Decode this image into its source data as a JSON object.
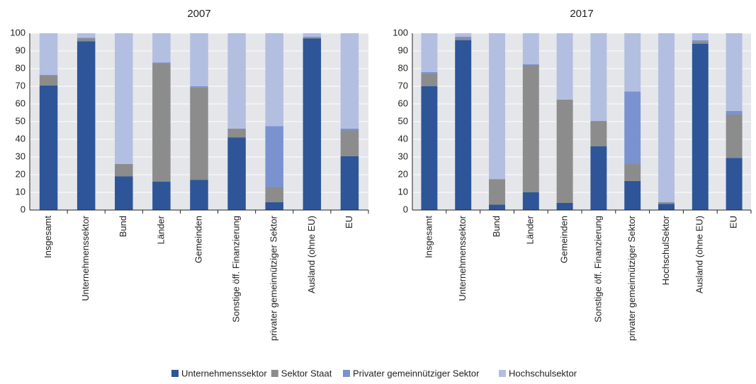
{
  "chart_data": [
    {
      "type": "bar",
      "stacked": true,
      "title": "2007",
      "categories": [
        "Insgesamt",
        "Unternehmenssektor",
        "Bund",
        "Länder",
        "Gemeinden",
        "Sonstige öff. Finanzierung",
        "privater gemeinnütziger Sektor",
        "Ausland (ohne EU)",
        "EU"
      ],
      "series": [
        {
          "name": "Unternehmenssektor",
          "color": "#2e5597",
          "values": [
            70.5,
            95.5,
            19,
            16,
            17,
            41,
            4.5,
            97,
            30.5
          ]
        },
        {
          "name": "Sektor Staat",
          "color": "#8c8c8c",
          "values": [
            5.5,
            1.5,
            7,
            67,
            52.5,
            5,
            8.5,
            0.5,
            14.5
          ]
        },
        {
          "name": "Privater gemeinnütziger Sektor",
          "color": "#7a93d0",
          "values": [
            0.5,
            0.5,
            0,
            0.5,
            0.5,
            0,
            34.5,
            0.5,
            1
          ]
        },
        {
          "name": "Hochschulsektor",
          "color": "#b3bfe0",
          "values": [
            23.5,
            2.5,
            74,
            16.5,
            30,
            54,
            52.5,
            2,
            54
          ]
        }
      ],
      "ylim": [
        0,
        100
      ],
      "yticks": [
        0,
        10,
        20,
        30,
        40,
        50,
        60,
        70,
        80,
        90,
        100
      ],
      "grid": true
    },
    {
      "type": "bar",
      "stacked": true,
      "title": "2017",
      "categories": [
        "Insgesamt",
        "Unternehmenssektor",
        "Bund",
        "Länder",
        "Gemeinden",
        "Sonstige öff. Finanzierung",
        "privater gemeinnütziger Sektor",
        "HochschulSektor",
        "Ausland (ohne EU)",
        "EU"
      ],
      "series": [
        {
          "name": "Unternehmenssektor",
          "color": "#2e5597",
          "values": [
            70,
            96,
            3,
            10,
            4,
            36,
            16.5,
            3.5,
            94,
            29.5
          ]
        },
        {
          "name": "Sektor Staat",
          "color": "#8c8c8c",
          "values": [
            7,
            1,
            14.5,
            72,
            58.5,
            14,
            9.5,
            1,
            1.5,
            24.5
          ]
        },
        {
          "name": "Privater gemeinnütziger Sektor",
          "color": "#7a93d0",
          "values": [
            1,
            1,
            0,
            0.5,
            0,
            0.5,
            41,
            0,
            0.5,
            2
          ]
        },
        {
          "name": "Hochschulsektor",
          "color": "#b3bfe0",
          "values": [
            22,
            2,
            82.5,
            17.5,
            37.5,
            49.5,
            33,
            95.5,
            4,
            44
          ]
        }
      ],
      "ylim": [
        0,
        100
      ],
      "yticks": [
        0,
        10,
        20,
        30,
        40,
        50,
        60,
        70,
        80,
        90,
        100
      ],
      "grid": true
    }
  ]
}
